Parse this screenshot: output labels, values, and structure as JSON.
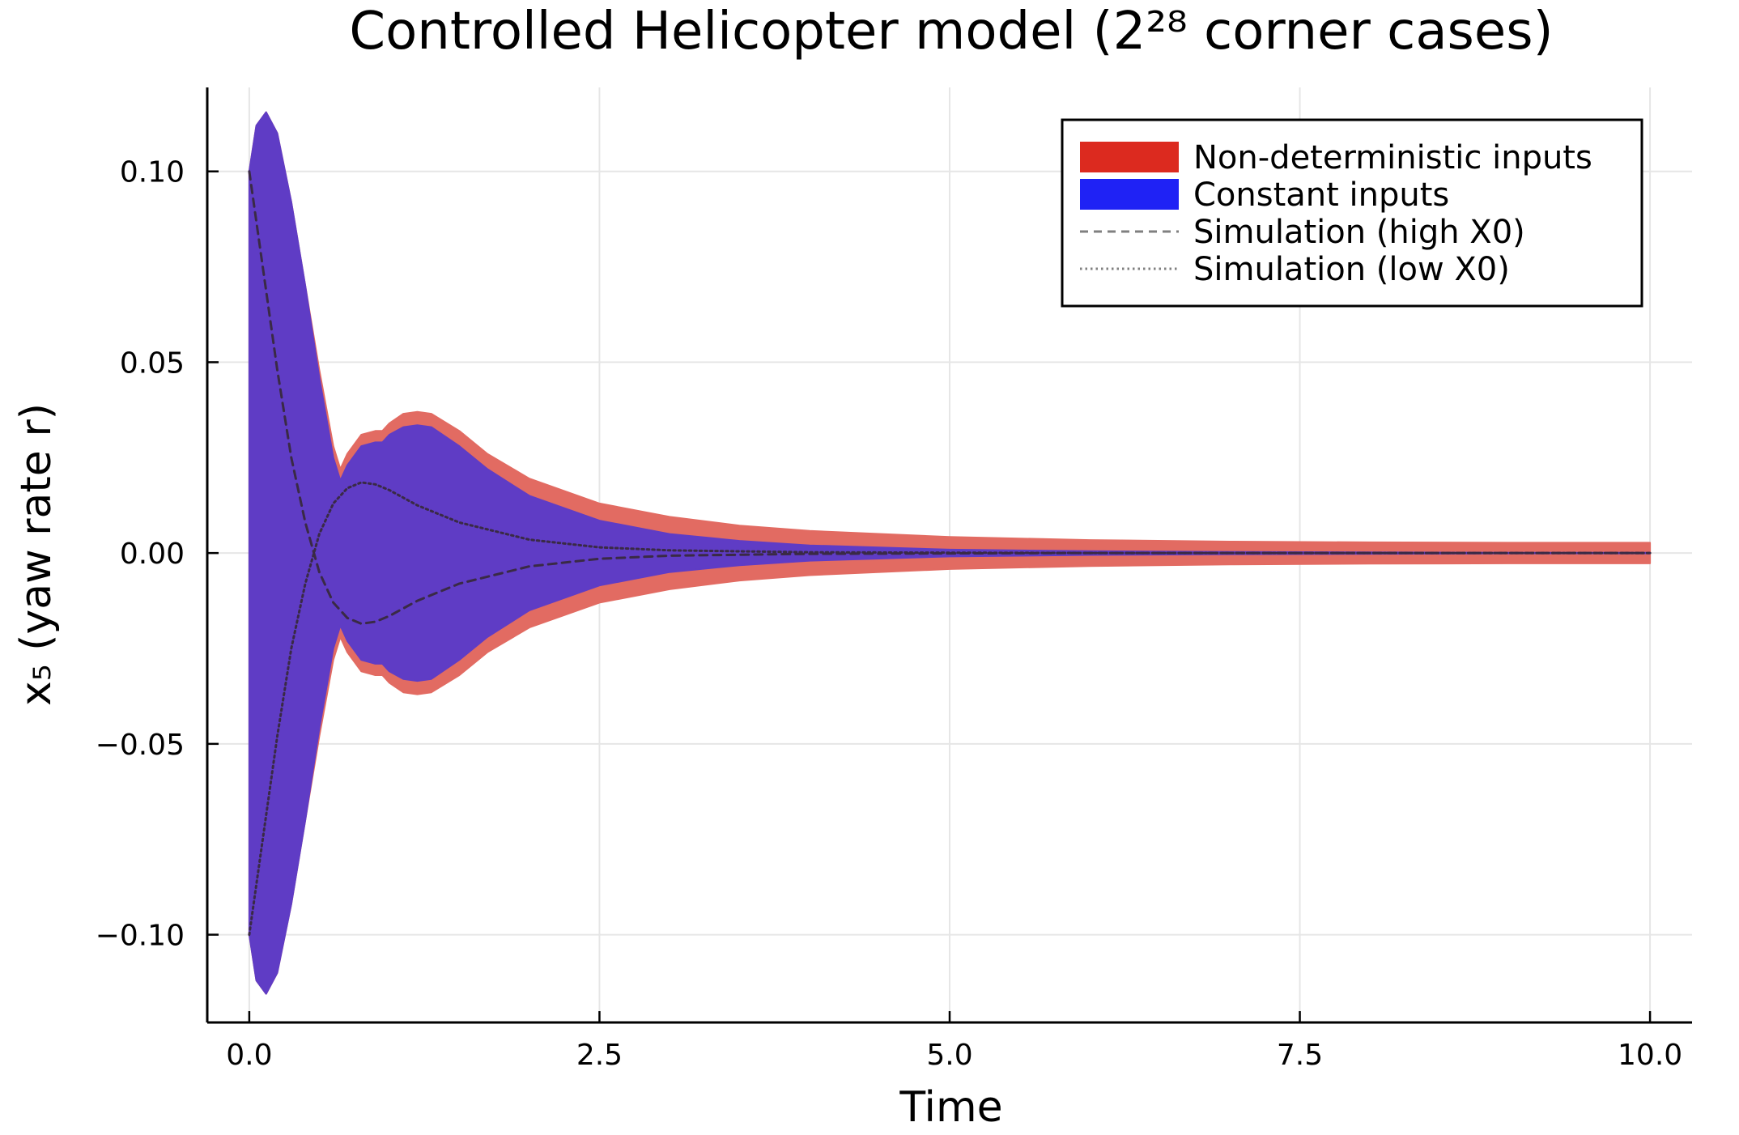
{
  "chart_data": {
    "type": "area",
    "title": "Controlled Helicopter model (2²⁸ corner cases)",
    "xlabel": "Time",
    "ylabel": "x₅ (yaw rate r)",
    "xlim": [
      -0.3,
      10.3
    ],
    "ylim": [
      -0.123,
      0.122
    ],
    "x_ticks": [
      0.0,
      2.5,
      5.0,
      7.5,
      10.0
    ],
    "x_tick_labels": [
      "0.0",
      "2.5",
      "5.0",
      "7.5",
      "10.0"
    ],
    "y_ticks": [
      0.1,
      0.05,
      0.0,
      -0.05,
      -0.1
    ],
    "y_tick_labels": [
      "0.10",
      "0.05",
      "0.00",
      "−0.05",
      "−0.10"
    ],
    "grid": true,
    "legend_position": "top-right",
    "series": [
      {
        "name": "Non-deterministic inputs",
        "kind": "band",
        "color": "#e26b62",
        "legend_color": "#dc2a1f",
        "x": [
          0,
          0.05,
          0.12,
          0.2,
          0.3,
          0.4,
          0.5,
          0.6,
          0.65,
          0.7,
          0.8,
          0.9,
          0.95,
          1.0,
          1.1,
          1.2,
          1.3,
          1.5,
          1.7,
          2.0,
          2.5,
          3.0,
          3.5,
          4.0,
          5.0,
          6.0,
          7.0,
          8.0,
          9.0,
          10.0
        ],
        "upper": [
          0.1,
          0.112,
          0.1155,
          0.11,
          0.092,
          0.07,
          0.048,
          0.028,
          0.022,
          0.026,
          0.031,
          0.032,
          0.032,
          0.034,
          0.0365,
          0.037,
          0.0365,
          0.032,
          0.026,
          0.0195,
          0.013,
          0.0095,
          0.0072,
          0.0058,
          0.0042,
          0.0034,
          0.003,
          0.0028,
          0.0027,
          0.0027
        ],
        "lower": [
          -0.1,
          -0.112,
          -0.1155,
          -0.11,
          -0.092,
          -0.07,
          -0.048,
          -0.028,
          -0.022,
          -0.026,
          -0.031,
          -0.032,
          -0.032,
          -0.034,
          -0.0365,
          -0.037,
          -0.0365,
          -0.032,
          -0.026,
          -0.0195,
          -0.013,
          -0.0095,
          -0.0072,
          -0.0058,
          -0.0042,
          -0.0034,
          -0.003,
          -0.0028,
          -0.0027,
          -0.0027
        ]
      },
      {
        "name": "Constant inputs",
        "kind": "band",
        "color": "#5f3cc5",
        "legend_color": "#1f22f5",
        "x": [
          0,
          0.05,
          0.12,
          0.2,
          0.3,
          0.4,
          0.5,
          0.6,
          0.65,
          0.7,
          0.8,
          0.9,
          0.95,
          1.0,
          1.1,
          1.2,
          1.3,
          1.5,
          1.7,
          2.0,
          2.5,
          3.0,
          3.5,
          4.0,
          5.0,
          6.0,
          7.0,
          8.0,
          9.0,
          10.0
        ],
        "upper": [
          0.1,
          0.112,
          0.1155,
          0.11,
          0.092,
          0.07,
          0.046,
          0.025,
          0.019,
          0.023,
          0.028,
          0.029,
          0.029,
          0.031,
          0.033,
          0.0335,
          0.033,
          0.028,
          0.022,
          0.015,
          0.0085,
          0.005,
          0.0032,
          0.002,
          0.0009,
          0.0005,
          0.0003,
          0.0002,
          0.0001,
          0.0001
        ],
        "lower": [
          -0.1,
          -0.112,
          -0.1155,
          -0.11,
          -0.092,
          -0.07,
          -0.046,
          -0.025,
          -0.019,
          -0.023,
          -0.028,
          -0.029,
          -0.029,
          -0.031,
          -0.033,
          -0.0335,
          -0.033,
          -0.028,
          -0.022,
          -0.015,
          -0.0085,
          -0.005,
          -0.0032,
          -0.002,
          -0.0009,
          -0.0005,
          -0.0003,
          -0.0002,
          -0.0001,
          -0.0001
        ]
      },
      {
        "name": "Simulation (high X0)",
        "kind": "line",
        "style": "dashed",
        "color": "#3a2a45",
        "legend_color": "#808080",
        "x": [
          0,
          0.1,
          0.2,
          0.3,
          0.4,
          0.5,
          0.6,
          0.7,
          0.8,
          0.9,
          1.0,
          1.2,
          1.5,
          2.0,
          2.5,
          3.0,
          4.0,
          5.0,
          6.0,
          8.0,
          10.0
        ],
        "values": [
          0.1,
          0.074,
          0.048,
          0.025,
          0.008,
          -0.005,
          -0.013,
          -0.017,
          -0.0185,
          -0.018,
          -0.0165,
          -0.0125,
          -0.008,
          -0.0035,
          -0.0015,
          -0.0007,
          -0.0002,
          -0.0001,
          0.0,
          0.0,
          0.0
        ]
      },
      {
        "name": "Simulation (low X0)",
        "kind": "line",
        "style": "dotted",
        "color": "#3a2a45",
        "legend_color": "#808080",
        "x": [
          0,
          0.1,
          0.2,
          0.3,
          0.4,
          0.5,
          0.6,
          0.7,
          0.8,
          0.9,
          1.0,
          1.2,
          1.5,
          2.0,
          2.5,
          3.0,
          4.0,
          5.0,
          6.0,
          8.0,
          10.0
        ],
        "values": [
          -0.1,
          -0.074,
          -0.048,
          -0.025,
          -0.008,
          0.005,
          0.013,
          0.017,
          0.0185,
          0.018,
          0.0165,
          0.0125,
          0.008,
          0.0035,
          0.0015,
          0.0007,
          0.0002,
          0.0001,
          0.0,
          0.0,
          0.0
        ]
      }
    ]
  }
}
